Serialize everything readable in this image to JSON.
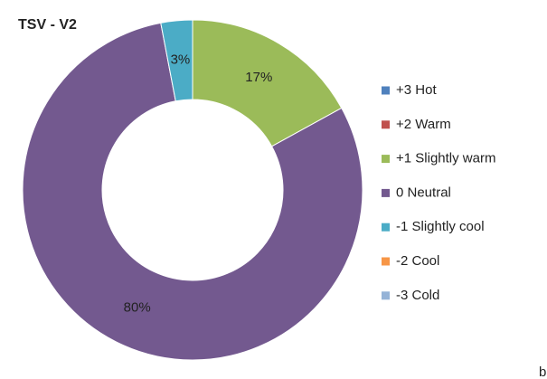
{
  "chart_data": {
    "type": "donut",
    "title": "TSV - V2",
    "categories": [
      "+3 Hot",
      "+2 Warm",
      "+1 Slightly warm",
      "0 Neutral",
      "-1 Slightly cool",
      "-2 Cool",
      "-3 Cold"
    ],
    "values": [
      0,
      0,
      17,
      80,
      3,
      0,
      0
    ],
    "value_labels": [
      null,
      null,
      "17%",
      "80%",
      "3%",
      null,
      null
    ],
    "colors": [
      "#4f81bd",
      "#c0504d",
      "#9bbb59",
      "#73598f",
      "#4bacc6",
      "#f79646",
      "#95b3d7"
    ],
    "legend": "right"
  },
  "footer_text": "b"
}
